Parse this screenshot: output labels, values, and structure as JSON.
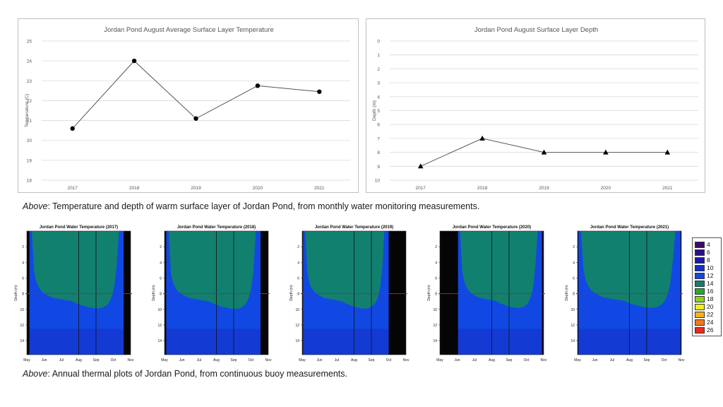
{
  "captions": {
    "top_lead": "Above",
    "top_text": ": Temperature and depth of warm surface layer of Jordan Pond, from monthly water monitoring measurements.",
    "bottom_lead": "Above",
    "bottom_text": ": Annual thermal plots of Jordan Pond, from continuous buoy measurements."
  },
  "chart_data": [
    {
      "type": "line",
      "title": "Jordan Pond August Average Surface Layer Temperature",
      "xlabel": "",
      "ylabel": "Temperature (C)",
      "categories": [
        "2017",
        "2018",
        "2019",
        "2020",
        "2021"
      ],
      "values": [
        20.6,
        24.0,
        21.1,
        22.75,
        22.45
      ],
      "ylim": [
        18,
        25
      ],
      "yticks": [
        18,
        19,
        20,
        21,
        22,
        23,
        24,
        25
      ],
      "marker": "circle",
      "grid": true
    },
    {
      "type": "line",
      "title": "Jordan Pond August Surface Layer Depth",
      "xlabel": "",
      "ylabel": "Depth (m)",
      "categories": [
        "2017",
        "2018",
        "2019",
        "2020",
        "2021"
      ],
      "values": [
        9,
        7,
        8,
        8,
        8
      ],
      "ylim": [
        0,
        10
      ],
      "y_inverted": true,
      "yticks": [
        0,
        1,
        2,
        3,
        4,
        5,
        6,
        7,
        8,
        9,
        10
      ],
      "marker": "triangle",
      "grid": true
    },
    {
      "type": "heatmap",
      "plots": [
        {
          "title": "Jordan Pond Water Temperature (2017)",
          "thermocline_depth": 8,
          "start_month": 0.15,
          "end_month": 5.6
        },
        {
          "title": "Jordan Pond Water Temperature (2018)",
          "thermocline_depth": 8,
          "start_month": 0.1,
          "end_month": 5.55
        },
        {
          "title": "Jordan Pond Water Temperature (2019)",
          "thermocline_depth": 8,
          "start_month": 0.05,
          "end_month": 5.0
        },
        {
          "title": "Jordan Pond Water Temperature (2020)",
          "thermocline_depth": 8,
          "start_month": 1.05,
          "end_month": 5.9
        },
        {
          "title": "Jordan Pond Water Temperature (2021)",
          "thermocline_depth": 8,
          "start_month": 0.05,
          "end_month": 5.95
        }
      ],
      "x_ticks": [
        "May",
        "Jun",
        "Jul",
        "Aug",
        "Sep",
        "Oct",
        "Nov"
      ],
      "y_ticks": [
        "2",
        "4",
        "6",
        "8",
        "10",
        "12",
        "14"
      ],
      "ylabel": "Depth (m)",
      "legend": [
        {
          "label": "4",
          "color": "#3d0a6b"
        },
        {
          "label": "6",
          "color": "#2c0f86"
        },
        {
          "label": "8",
          "color": "#1c1aa5"
        },
        {
          "label": "10",
          "color": "#1530c4"
        },
        {
          "label": "12",
          "color": "#1148e4"
        },
        {
          "label": "14",
          "color": "#12806f"
        },
        {
          "label": "16",
          "color": "#1fae2c"
        },
        {
          "label": "18",
          "color": "#8bd41b"
        },
        {
          "label": "20",
          "color": "#f0f018"
        },
        {
          "label": "22",
          "color": "#f5b21a"
        },
        {
          "label": "24",
          "color": "#f27a1c"
        },
        {
          "label": "26",
          "color": "#ea2a1a"
        }
      ]
    }
  ],
  "colors": {
    "line": "#555555",
    "grid": "#d9d9d9",
    "thermocline": "#a0224a",
    "dark_fill": "#050505"
  }
}
